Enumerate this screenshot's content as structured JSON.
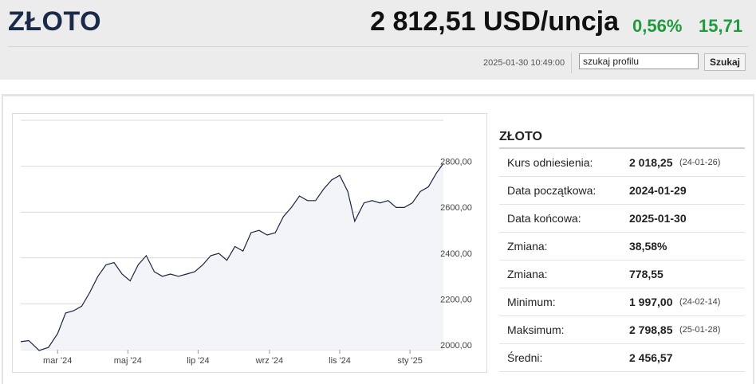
{
  "header": {
    "title": "ZŁOTO",
    "price": "2 812,51 USD/uncja",
    "change_pct": "0,56%",
    "change_abs": "15,71",
    "timestamp": "2025-01-30 10:49:00",
    "search_value": "szukaj profilu",
    "search_button": "Szukaj"
  },
  "colors": {
    "positive": "#1f9a3c",
    "title": "#1c2a4a",
    "line": "#1a2440"
  },
  "info": {
    "title": "ZŁOTO",
    "rows": [
      {
        "label": "Kurs odniesienia:",
        "value": "2 018,25",
        "date": "(24-01-26)"
      },
      {
        "label": "Data początkowa:",
        "value": "2024-01-29",
        "date": ""
      },
      {
        "label": "Data końcowa:",
        "value": "2025-01-30",
        "date": ""
      },
      {
        "label": "Zmiana:",
        "value": "38,58%",
        "date": ""
      },
      {
        "label": "Zmiana:",
        "value": "778,55",
        "date": ""
      },
      {
        "label": "Minimum:",
        "value": "1 997,00",
        "date": "(24-02-14)"
      },
      {
        "label": "Maksimum:",
        "value": "2 798,85",
        "date": "(25-01-28)"
      },
      {
        "label": "Średni:",
        "value": "2 456,57",
        "date": ""
      }
    ]
  },
  "chart_data": {
    "type": "area",
    "x_ticks": [
      "mar '24",
      "maj '24",
      "lip '24",
      "wrz '24",
      "lis '24",
      "sty '25"
    ],
    "y_ticks": [
      "2800,00",
      "2600,00",
      "2400,00",
      "2200,00",
      "2000,00"
    ],
    "y_tick_values": [
      2800,
      2600,
      2400,
      2200,
      2000
    ],
    "ylim": [
      2000,
      3000
    ],
    "grid": true,
    "x": [
      "2024-01-29",
      "2024-02-05",
      "2024-02-14",
      "2024-02-22",
      "2024-03-01",
      "2024-03-08",
      "2024-03-15",
      "2024-03-22",
      "2024-03-29",
      "2024-04-05",
      "2024-04-12",
      "2024-04-19",
      "2024-04-26",
      "2024-05-03",
      "2024-05-10",
      "2024-05-17",
      "2024-05-24",
      "2024-05-31",
      "2024-06-07",
      "2024-06-14",
      "2024-06-21",
      "2024-06-28",
      "2024-07-05",
      "2024-07-12",
      "2024-07-19",
      "2024-07-26",
      "2024-08-02",
      "2024-08-09",
      "2024-08-16",
      "2024-08-23",
      "2024-08-30",
      "2024-09-06",
      "2024-09-13",
      "2024-09-20",
      "2024-09-27",
      "2024-10-04",
      "2024-10-11",
      "2024-10-18",
      "2024-10-25",
      "2024-11-01",
      "2024-11-08",
      "2024-11-14",
      "2024-11-22",
      "2024-11-29",
      "2024-12-06",
      "2024-12-13",
      "2024-12-20",
      "2024-12-27",
      "2025-01-03",
      "2025-01-10",
      "2025-01-17",
      "2025-01-24",
      "2025-01-30"
    ],
    "values": [
      2035,
      2040,
      1997,
      2010,
      2070,
      2160,
      2170,
      2190,
      2250,
      2320,
      2370,
      2380,
      2330,
      2300,
      2370,
      2410,
      2340,
      2320,
      2330,
      2320,
      2330,
      2340,
      2370,
      2410,
      2420,
      2390,
      2450,
      2430,
      2510,
      2520,
      2500,
      2510,
      2580,
      2620,
      2670,
      2650,
      2650,
      2700,
      2740,
      2760,
      2690,
      2560,
      2640,
      2650,
      2640,
      2650,
      2620,
      2620,
      2640,
      2690,
      2710,
      2770,
      2812
    ]
  }
}
